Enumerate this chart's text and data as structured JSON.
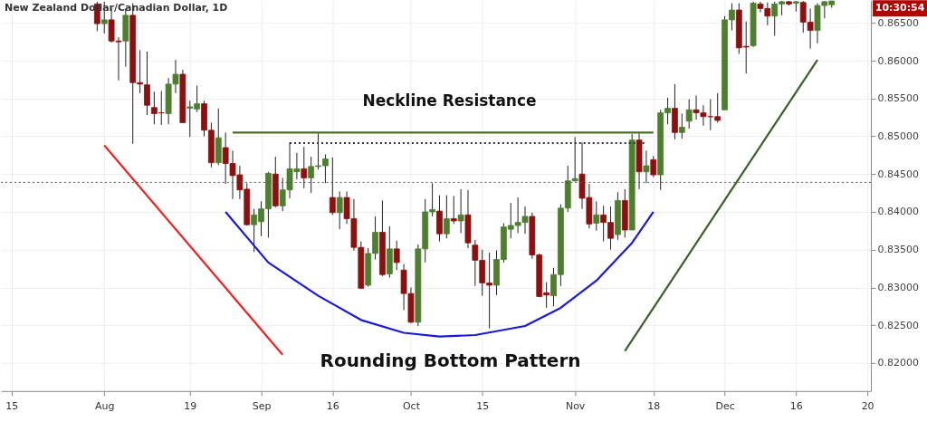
{
  "chart_data": {
    "type": "candlestick",
    "title": "New Zealand Dollar/Canadian Dollar, 1D",
    "categories": [
      null,
      "15",
      null,
      null,
      null,
      null,
      null,
      null,
      null,
      null,
      null,
      null,
      null,
      null,
      "Aug",
      null,
      null,
      null,
      null,
      null,
      null,
      null,
      null,
      null,
      null,
      null,
      "19",
      null,
      null,
      null,
      null,
      null,
      null,
      null,
      null,
      null,
      "Sep",
      null,
      null,
      null,
      null,
      null,
      null,
      null,
      null,
      null,
      "16",
      null,
      null,
      null,
      null,
      null,
      null,
      null,
      null,
      null,
      null,
      "Oct",
      null,
      null,
      null,
      null,
      null,
      null,
      null,
      null,
      null,
      "15",
      null,
      null,
      null,
      null,
      null,
      null,
      null,
      null,
      null,
      null,
      null,
      null,
      "Nov",
      null,
      null,
      null,
      null,
      null,
      null,
      null,
      null,
      null,
      null,
      "18",
      null,
      null,
      null,
      null,
      null,
      null,
      null,
      null,
      null,
      "Dec",
      null,
      null,
      null,
      null,
      null,
      null,
      null,
      null,
      null,
      "16",
      null,
      null,
      null,
      null,
      null,
      null,
      null,
      null,
      null,
      "20"
    ],
    "ohlc": [
      null,
      null,
      null,
      null,
      null,
      null,
      null,
      null,
      null,
      null,
      null,
      null,
      null,
      [
        0.8675,
        0.8678,
        0.8639,
        0.8649
      ],
      [
        0.8649,
        0.8678,
        0.8636,
        0.8654
      ],
      [
        0.8654,
        0.8669,
        0.8624,
        0.8626
      ],
      [
        0.8626,
        0.8631,
        0.8574,
        0.8625
      ],
      [
        0.8626,
        0.8669,
        0.8592,
        0.866
      ],
      [
        0.866,
        0.8676,
        0.849,
        0.8571
      ],
      [
        0.8571,
        0.8614,
        0.8557,
        0.8569
      ],
      [
        0.8568,
        0.8612,
        0.8528,
        0.8541
      ],
      [
        0.8538,
        0.8559,
        0.8516,
        0.853
      ],
      [
        0.8531,
        0.856,
        0.8515,
        0.8531
      ],
      [
        0.853,
        0.8577,
        0.8516,
        0.8569
      ],
      [
        0.8569,
        0.8601,
        0.8557,
        0.8582
      ],
      [
        0.8582,
        0.8588,
        0.8518,
        0.8518
      ],
      [
        0.8537,
        0.8547,
        0.8499,
        0.8539
      ],
      [
        0.8536,
        0.8567,
        0.8532,
        0.8543
      ],
      [
        0.8543,
        0.8547,
        0.85,
        0.8508
      ],
      [
        0.8508,
        0.8518,
        0.8459,
        0.8465
      ],
      [
        0.8465,
        0.8537,
        0.8462,
        0.8498
      ],
      [
        0.8485,
        0.8505,
        0.8437,
        0.8464
      ],
      [
        0.8464,
        0.8481,
        0.8417,
        0.8448
      ],
      [
        0.8449,
        0.8461,
        0.8417,
        0.8429
      ],
      [
        0.843,
        0.8438,
        0.8382,
        0.8383
      ],
      [
        0.8383,
        0.8404,
        0.8347,
        0.8396
      ],
      [
        0.8387,
        0.8414,
        0.8368,
        0.8404
      ],
      [
        0.8404,
        0.8453,
        0.8366,
        0.8451
      ],
      [
        0.845,
        0.8473,
        0.8406,
        0.8408
      ],
      [
        0.8408,
        0.8445,
        0.8401,
        0.8429
      ],
      [
        0.8429,
        0.8492,
        0.8418,
        0.8457
      ],
      [
        0.8453,
        0.8478,
        0.8443,
        0.8457
      ],
      [
        0.8457,
        0.8486,
        0.8431,
        0.8445
      ],
      [
        0.8445,
        0.8473,
        0.8425,
        0.846
      ],
      [
        0.846,
        0.8504,
        0.8456,
        0.8461
      ],
      [
        0.8461,
        0.8476,
        0.8438,
        0.847
      ],
      [
        0.8419,
        0.8472,
        0.8396,
        0.8399
      ],
      [
        0.8399,
        0.8427,
        0.8377,
        0.8419
      ],
      [
        0.8419,
        0.8427,
        0.8384,
        0.8391
      ],
      [
        0.8391,
        0.8417,
        0.8349,
        0.8353
      ],
      [
        0.8353,
        0.8361,
        0.8298,
        0.8299
      ],
      [
        0.8303,
        0.8352,
        0.8301,
        0.8345
      ],
      [
        0.8345,
        0.8394,
        0.8337,
        0.8373
      ],
      [
        0.8373,
        0.8415,
        0.8315,
        0.8317
      ],
      [
        0.8318,
        0.8381,
        0.8313,
        0.8351
      ],
      [
        0.8351,
        0.8362,
        0.8323,
        0.8333
      ],
      [
        0.8323,
        0.8331,
        0.827,
        0.8292
      ],
      [
        0.8292,
        0.83,
        0.8253,
        0.8254
      ],
      [
        0.8254,
        0.8357,
        0.8249,
        0.8351
      ],
      [
        0.8351,
        0.8417,
        0.8333,
        0.84
      ],
      [
        0.84,
        0.8438,
        0.8394,
        0.8403
      ],
      [
        0.8401,
        0.8422,
        0.8361,
        0.8371
      ],
      [
        0.8371,
        0.8422,
        0.8365,
        0.8391
      ],
      [
        0.8391,
        0.8421,
        0.8384,
        0.8388
      ],
      [
        0.8388,
        0.843,
        0.8372,
        0.8396
      ],
      [
        0.8396,
        0.8429,
        0.8352,
        0.8359
      ],
      [
        0.8356,
        0.8363,
        0.8302,
        0.8336
      ],
      [
        0.8336,
        0.835,
        0.8289,
        0.8306
      ],
      [
        0.8306,
        0.8346,
        0.8246,
        0.8303
      ],
      [
        0.8303,
        0.8349,
        0.829,
        0.8337
      ],
      [
        0.8337,
        0.8385,
        0.8333,
        0.838
      ],
      [
        0.8377,
        0.8412,
        0.8365,
        0.8382
      ],
      [
        0.8382,
        0.8419,
        0.8372,
        0.8386
      ],
      [
        0.8386,
        0.8407,
        0.8371,
        0.8394
      ],
      [
        0.8394,
        0.8399,
        0.8338,
        0.8343
      ],
      [
        0.8343,
        0.8345,
        0.8287,
        0.8288
      ],
      [
        0.8293,
        0.8307,
        0.8273,
        0.829
      ],
      [
        0.8289,
        0.8326,
        0.8275,
        0.8317
      ],
      [
        0.8317,
        0.841,
        0.8302,
        0.8405
      ],
      [
        0.8405,
        0.8461,
        0.84,
        0.8441
      ],
      [
        0.8441,
        0.8499,
        0.844,
        0.8444
      ],
      [
        0.845,
        0.8492,
        0.8404,
        0.8418
      ],
      [
        0.8419,
        0.8437,
        0.8378,
        0.8384
      ],
      [
        0.8385,
        0.8414,
        0.8375,
        0.8396
      ],
      [
        0.8396,
        0.8408,
        0.8361,
        0.8386
      ],
      [
        0.8386,
        0.8407,
        0.835,
        0.8365
      ],
      [
        0.837,
        0.8426,
        0.8363,
        0.8415
      ],
      [
        0.8415,
        0.843,
        0.8366,
        0.8376
      ],
      [
        0.8376,
        0.8503,
        0.8376,
        0.8495
      ],
      [
        0.8495,
        0.8504,
        0.843,
        0.8453
      ],
      [
        0.8453,
        0.8481,
        0.8438,
        0.8461
      ],
      [
        0.8469,
        0.8474,
        0.8446,
        0.8449
      ],
      [
        0.8449,
        0.8535,
        0.8429,
        0.8531
      ],
      [
        0.8531,
        0.8551,
        0.8516,
        0.8537
      ],
      [
        0.8537,
        0.8569,
        0.8496,
        0.8505
      ],
      [
        0.8505,
        0.853,
        0.8497,
        0.8512
      ],
      [
        0.852,
        0.8549,
        0.851,
        0.8535
      ],
      [
        0.8535,
        0.8554,
        0.8522,
        0.8531
      ],
      [
        0.8531,
        0.8541,
        0.8514,
        0.8526
      ],
      [
        0.8526,
        0.8549,
        0.8508,
        0.8526
      ],
      [
        0.8526,
        0.8557,
        0.8518,
        0.8521
      ],
      [
        0.8535,
        0.8659,
        0.8535,
        0.8654
      ],
      [
        0.8654,
        0.8676,
        0.864,
        0.8667
      ],
      [
        0.8667,
        0.8676,
        0.8609,
        0.8617
      ],
      [
        0.8619,
        0.8652,
        0.8583,
        0.8618
      ],
      [
        0.862,
        0.8678,
        0.8618,
        0.8676
      ],
      [
        0.8675,
        0.8678,
        0.8664,
        0.8669
      ],
      [
        0.8669,
        0.8677,
        0.8647,
        0.8659
      ],
      [
        0.8659,
        0.8678,
        0.8633,
        0.8675
      ],
      [
        0.8675,
        0.8679,
        0.866,
        0.8678
      ],
      [
        0.8678,
        0.8679,
        0.8673,
        0.8675
      ],
      [
        0.8676,
        0.8679,
        0.8665,
        0.8678
      ],
      [
        0.8677,
        0.8679,
        0.8637,
        0.8651
      ],
      [
        0.8651,
        0.8669,
        0.8616,
        0.864
      ],
      [
        0.864,
        0.8676,
        0.8623,
        0.8673
      ],
      [
        0.8673,
        0.8679,
        0.8656,
        0.8678
      ],
      [
        0.8674,
        0.8679,
        0.867,
        0.8679
      ],
      null,
      null,
      null,
      null,
      null
    ],
    "colors": [
      null,
      null,
      null,
      null,
      null,
      null,
      null,
      null,
      null,
      null,
      null,
      null,
      null,
      "#8b1111",
      "#4d7f2e",
      "#8b1111",
      "#8b1111",
      "#4d7f2e",
      "#8b1111",
      "#8b1111",
      "#8b1111",
      "#8b1111",
      "#8b1111",
      "#4d7f2e",
      "#4d7f2e",
      "#8b1111",
      "#4d7f2e",
      "#4d7f2e",
      "#8b1111",
      "#8b1111",
      "#4d7f2e",
      "#8b1111",
      "#8b1111",
      "#8b1111",
      "#8b1111",
      "#4d7f2e",
      "#4d7f2e",
      "#4d7f2e",
      "#8b1111",
      "#4d7f2e",
      "#4d7f2e",
      "#4d7f2e",
      "#8b1111",
      "#4d7f2e",
      "#4d7f2e",
      "#4d7f2e",
      "#8b1111",
      "#4d7f2e",
      "#8b1111",
      "#8b1111",
      "#8b1111",
      "#4d7f2e",
      "#4d7f2e",
      "#8b1111",
      "#4d7f2e",
      "#8b1111",
      "#8b1111",
      "#8b1111",
      "#4d7f2e",
      "#4d7f2e",
      "#4d7f2e",
      "#8b1111",
      "#4d7f2e",
      "#8b1111",
      "#4d7f2e",
      "#8b1111",
      "#8b1111",
      "#8b1111",
      "#8b1111",
      "#4d7f2e",
      "#4d7f2e",
      "#4d7f2e",
      "#4d7f2e",
      "#4d7f2e",
      "#8b1111",
      "#8b1111",
      "#8b1111",
      "#4d7f2e",
      "#4d7f2e",
      "#4d7f2e",
      "#4d7f2e",
      "#8b1111",
      "#8b1111",
      "#4d7f2e",
      "#8b1111",
      "#8b1111",
      "#4d7f2e",
      "#8b1111",
      "#4d7f2e",
      "#8b1111",
      "#4d7f2e",
      "#8b1111",
      "#4d7f2e",
      "#4d7f2e",
      "#8b1111",
      "#4d7f2e",
      "#4d7f2e",
      "#8b1111",
      "#8b1111",
      "#8b1111",
      "#8b1111",
      "#4d7f2e",
      "#4d7f2e",
      "#8b1111",
      "#8b1111",
      "#4d7f2e",
      "#8b1111",
      "#8b1111",
      "#4d7f2e",
      "#4d7f2e",
      "#8b1111",
      "#4d7f2e",
      "#8b1111",
      "#8b1111",
      "#4d7f2e",
      "#4d7f2e",
      "#4d7f2e",
      null,
      null,
      null,
      null,
      null
    ],
    "series": [
      {
        "type": "line",
        "color": "#4a6e2a",
        "values": [
          null,
          null,
          null,
          null,
          null,
          null,
          null,
          null,
          null,
          null,
          null,
          null,
          null,
          null,
          null,
          null,
          null,
          null,
          null,
          null,
          null,
          null,
          null,
          null,
          null,
          null,
          null,
          null,
          null,
          null,
          null,
          null,
          0.8505,
          null,
          null,
          null,
          null,
          null,
          null,
          null,
          null,
          null,
          null,
          null,
          null,
          null,
          null,
          null,
          null,
          null,
          null,
          null,
          null,
          null,
          null,
          null,
          null,
          null,
          null,
          null,
          null,
          null,
          null,
          null,
          null,
          null,
          null,
          null,
          null,
          null,
          null,
          null,
          null,
          null,
          null,
          null,
          null,
          null,
          null,
          null,
          null,
          null,
          null,
          null,
          null,
          null,
          null,
          null,
          null,
          null,
          null,
          0.8505,
          null,
          null,
          null,
          null,
          null,
          null,
          null,
          null,
          null,
          null,
          null,
          null,
          null,
          null,
          null,
          null,
          null,
          null,
          null,
          null,
          null,
          null,
          null,
          null,
          null,
          null,
          null,
          null,
          null,
          null
        ]
      },
      {
        "type": "line",
        "color": "#333333",
        "line_style": "dotted",
        "values": [
          null,
          null,
          null,
          null,
          null,
          null,
          null,
          null,
          null,
          null,
          null,
          null,
          null,
          null,
          null,
          null,
          null,
          null,
          null,
          null,
          null,
          null,
          null,
          null,
          null,
          null,
          null,
          null,
          null,
          null,
          null,
          null,
          null,
          null,
          null,
          null,
          null,
          null,
          null,
          null,
          0.8491,
          null,
          null,
          null,
          null,
          null,
          null,
          null,
          null,
          null,
          null,
          null,
          null,
          null,
          null,
          null,
          null,
          null,
          null,
          null,
          null,
          null,
          null,
          null,
          null,
          null,
          null,
          null,
          null,
          null,
          null,
          null,
          null,
          null,
          null,
          null,
          null,
          null,
          null,
          null,
          null,
          null,
          null,
          null,
          null,
          null,
          null,
          null,
          null,
          null,
          0.8491,
          null,
          null,
          null,
          null,
          null,
          null,
          null,
          null,
          null,
          null,
          null,
          null,
          null,
          null,
          null,
          null,
          null,
          null,
          null,
          null,
          null,
          null,
          null,
          null,
          null,
          null,
          null,
          null,
          null,
          null,
          null
        ]
      },
      {
        "type": "line",
        "color": "#ee2222",
        "values": [
          null,
          null,
          null,
          null,
          null,
          null,
          null,
          null,
          null,
          null,
          null,
          null,
          null,
          null,
          0.8488,
          null,
          null,
          null,
          null,
          null,
          null,
          null,
          null,
          null,
          null,
          null,
          null,
          null,
          null,
          null,
          null,
          null,
          null,
          null,
          null,
          null,
          null,
          null,
          null,
          0.8211,
          null,
          null,
          null,
          null,
          null,
          null,
          null,
          null,
          null,
          null,
          null,
          null,
          null,
          null,
          null,
          null,
          null,
          null,
          null,
          null,
          null,
          null,
          null,
          null,
          null,
          null,
          null,
          null,
          null,
          null,
          null,
          null,
          null,
          null,
          null,
          null,
          null,
          null,
          null,
          null,
          null,
          null,
          null,
          null,
          null,
          null,
          null,
          null,
          null,
          null,
          null,
          null,
          null,
          null,
          null,
          null,
          null,
          null,
          null,
          null,
          null,
          null,
          null,
          null,
          null,
          null,
          null,
          null,
          null,
          null,
          null,
          null,
          null,
          null,
          null,
          null,
          null,
          null,
          null,
          null,
          null,
          null
        ]
      },
      {
        "type": "line",
        "color": "#1a1ad6",
        "values": [
          null,
          null,
          null,
          null,
          null,
          null,
          null,
          null,
          null,
          null,
          null,
          null,
          null,
          null,
          null,
          null,
          null,
          null,
          null,
          null,
          null,
          null,
          null,
          null,
          null,
          null,
          null,
          null,
          null,
          null,
          null,
          0.84,
          null,
          null,
          null,
          null,
          null,
          0.8333,
          null,
          null,
          null,
          null,
          null,
          null,
          0.8289,
          null,
          null,
          null,
          null,
          null,
          0.8257,
          null,
          null,
          null,
          null,
          null,
          0.824,
          null,
          null,
          null,
          null,
          0.8235,
          null,
          null,
          null,
          null,
          0.8237,
          null,
          null,
          null,
          null,
          null,
          null,
          0.8249,
          null,
          null,
          null,
          null,
          0.8273,
          null,
          null,
          null,
          null,
          0.8309,
          null,
          null,
          null,
          null,
          0.8359,
          null,
          null,
          0.84,
          null,
          null,
          null,
          null,
          null,
          null,
          null,
          null,
          null,
          null,
          null,
          null,
          null,
          null,
          null,
          null,
          null,
          null,
          null,
          null,
          null,
          null,
          null,
          null,
          null,
          null,
          null,
          null,
          null,
          null
        ]
      },
      {
        "type": "line",
        "color": "#3b5e2b",
        "values": [
          null,
          null,
          null,
          null,
          null,
          null,
          null,
          null,
          null,
          null,
          null,
          null,
          null,
          null,
          null,
          null,
          null,
          null,
          null,
          null,
          null,
          null,
          null,
          null,
          null,
          null,
          null,
          null,
          null,
          null,
          null,
          null,
          null,
          null,
          null,
          null,
          null,
          null,
          null,
          null,
          null,
          null,
          null,
          null,
          null,
          null,
          null,
          null,
          null,
          null,
          null,
          null,
          null,
          null,
          null,
          null,
          null,
          null,
          null,
          null,
          null,
          null,
          null,
          null,
          null,
          null,
          null,
          null,
          null,
          null,
          null,
          null,
          null,
          null,
          null,
          null,
          null,
          null,
          null,
          null,
          null,
          null,
          null,
          null,
          null,
          null,
          null,
          0.8216,
          null,
          null,
          null,
          null,
          null,
          null,
          null,
          null,
          null,
          null,
          null,
          null,
          null,
          null,
          null,
          null,
          null,
          null,
          null,
          null,
          null,
          null,
          null,
          null,
          null,
          null,
          0.8601,
          null,
          null,
          null,
          null,
          null,
          null,
          null
        ]
      }
    ],
    "ref_lines": [
      {
        "axis": "y",
        "value": 0.8439,
        "color": "#555555",
        "line_style": "dotted"
      }
    ],
    "annotations": [
      "Neckline Resistance",
      "Rounding Bottom Pattern",
      "10:30:54"
    ],
    "ylim": [
      0.8163,
      0.868
    ],
    "yticks": [
      {
        "value": 0.82,
        "label": "0.82000"
      },
      {
        "value": 0.825,
        "label": "0.82500"
      },
      {
        "value": 0.83,
        "label": "0.83000"
      },
      {
        "value": 0.835,
        "label": "0.83500"
      },
      {
        "value": 0.84,
        "label": "0.84000"
      },
      {
        "value": 0.845,
        "label": "0.84500"
      },
      {
        "value": 0.85,
        "label": "0.85000"
      },
      {
        "value": 0.855,
        "label": "0.85500"
      },
      {
        "value": 0.86,
        "label": "0.86000"
      },
      {
        "value": 0.865,
        "label": "0.86500"
      }
    ],
    "grid": true
  }
}
